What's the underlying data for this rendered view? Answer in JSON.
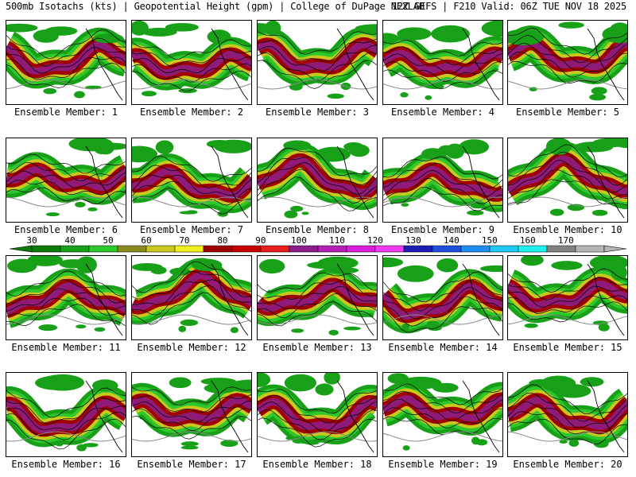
{
  "header": {
    "left": "500mb Isotachs (kts) | Geopotential Height (gpm) | College of DuPage NEXLAB",
    "right": "12Z GEFS | F210 Valid: 06Z TUE NOV 18 2025"
  },
  "members": [
    "Ensemble Member: 1",
    "Ensemble Member: 2",
    "Ensemble Member: 3",
    "Ensemble Member: 4",
    "Ensemble Member: 5",
    "Ensemble Member: 6",
    "Ensemble Member: 7",
    "Ensemble Member: 8",
    "Ensemble Member: 9",
    "Ensemble Member: 10",
    "Ensemble Member: 11",
    "Ensemble Member: 12",
    "Ensemble Member: 13",
    "Ensemble Member: 14",
    "Ensemble Member: 15",
    "Ensemble Member: 16",
    "Ensemble Member: 17",
    "Ensemble Member: 18",
    "Ensemble Member: 19",
    "Ensemble Member: 20"
  ],
  "colorbar": {
    "labels": [
      "30",
      "40",
      "50",
      "60",
      "70",
      "80",
      "90",
      "100",
      "110",
      "120",
      "130",
      "140",
      "150",
      "160",
      "170"
    ],
    "colors": [
      "#0a7a0a",
      "#19a019",
      "#2cc82c",
      "#8a8a1e",
      "#c8c81e",
      "#f0f01e",
      "#a00000",
      "#c80000",
      "#e61e1e",
      "#8c1e8c",
      "#b41eb4",
      "#dc1edc",
      "#f03cf0",
      "#1e1eb4",
      "#1e50dc",
      "#1e8cf0",
      "#1ec8f0",
      "#1ef0f0",
      "#828282",
      "#b4b4b4"
    ]
  }
}
